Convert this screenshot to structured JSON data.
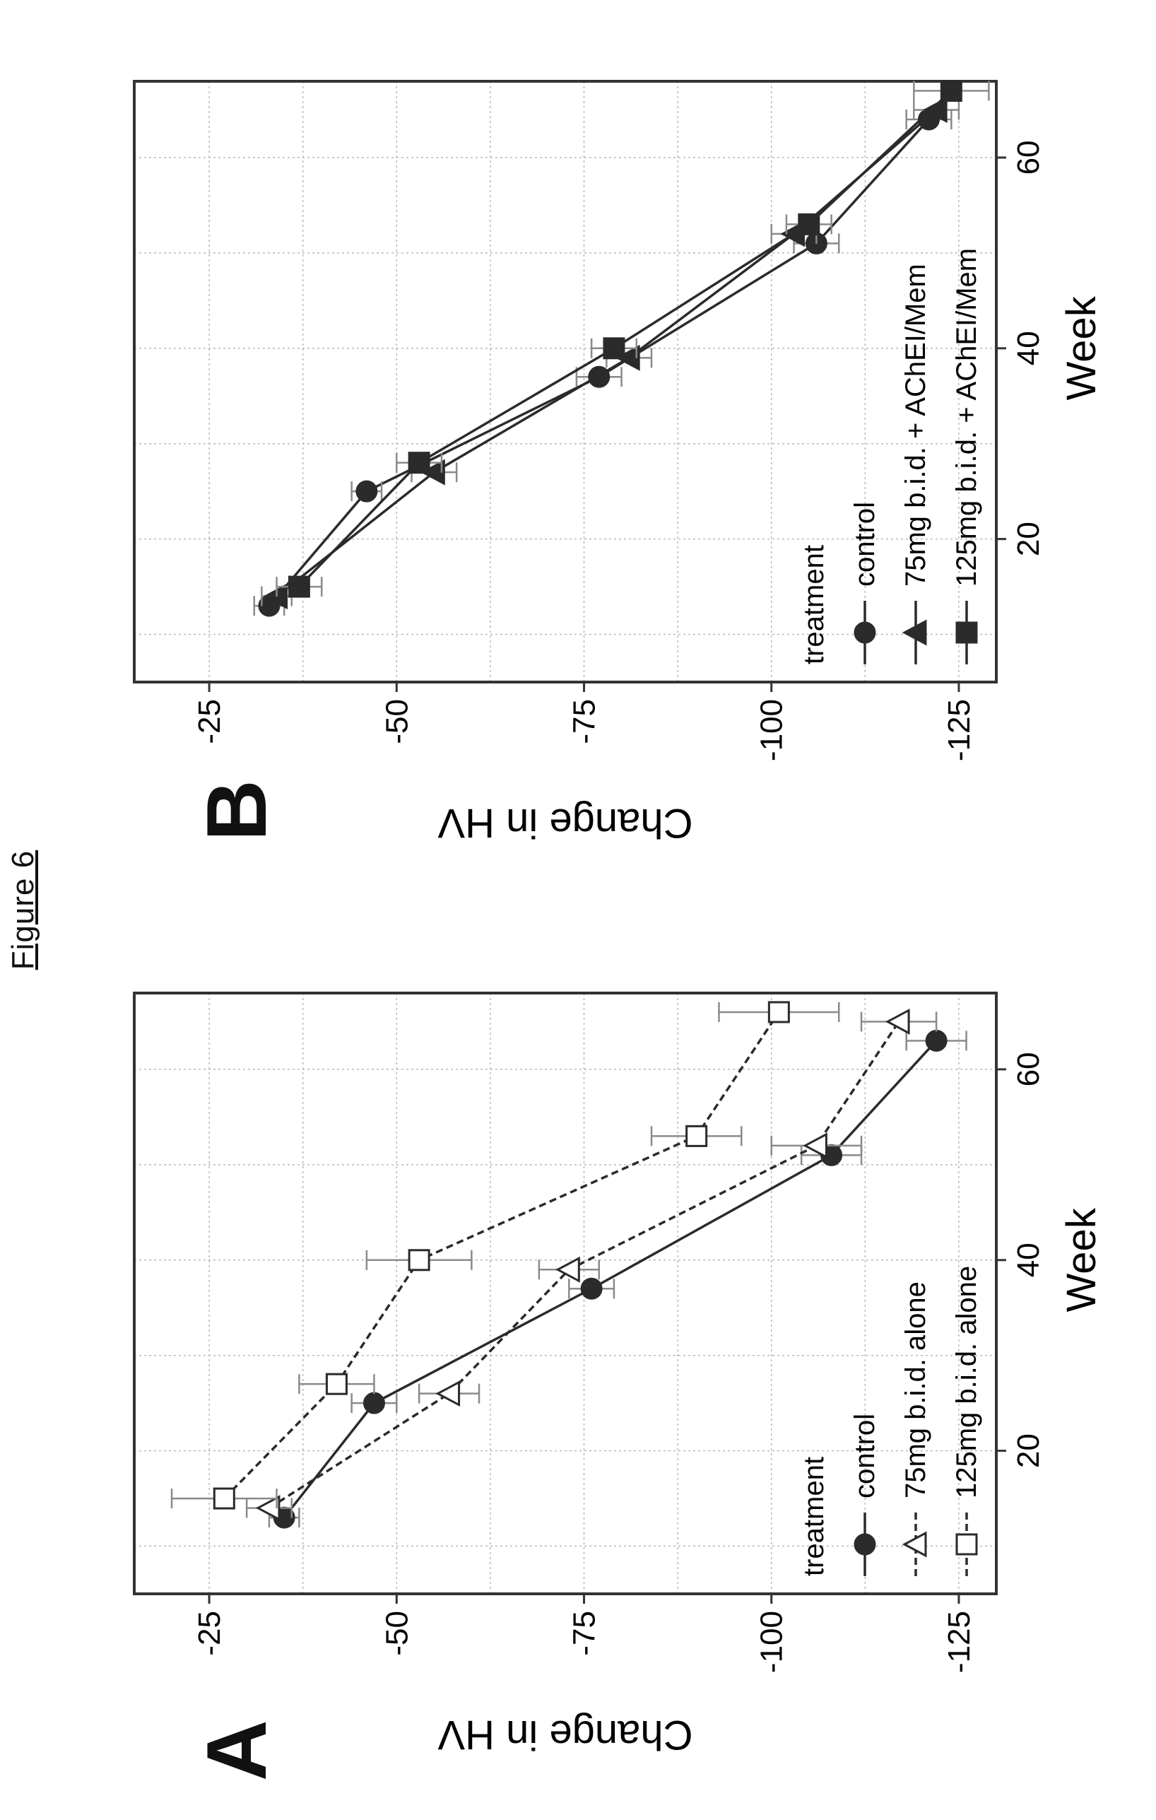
{
  "figure_title": "Figure 6",
  "panel_labels": {
    "a": "A",
    "b": "B"
  },
  "colors": {
    "line": "#2b2b2b",
    "grid": "#b8b8b8",
    "error_bar": "#8a8a8a",
    "frame": "#333333"
  },
  "chart_data": [
    {
      "panel": "A",
      "type": "line",
      "xlabel": "Week",
      "ylabel": "Change in HV",
      "xlim": [
        5,
        68
      ],
      "ylim": [
        -130,
        -15
      ],
      "xticks": [
        20,
        40,
        60
      ],
      "yticks": [
        -25,
        -50,
        -75,
        -100,
        -125
      ],
      "grid": true,
      "legend": {
        "title": "treatment",
        "placement": "bottom-left"
      },
      "series": [
        {
          "name": "control",
          "marker": "circle-filled",
          "dash": "solid",
          "x": [
            13,
            25,
            37,
            51,
            63
          ],
          "y": [
            -35,
            -47,
            -76,
            -108,
            -122
          ],
          "err": [
            2,
            3,
            3,
            4,
            4
          ]
        },
        {
          "name": "75mg b.i.d. alone",
          "marker": "triangle-open",
          "dash": "dashed",
          "x": [
            14,
            26,
            39,
            52,
            65
          ],
          "y": [
            -33,
            -57,
            -73,
            -106,
            -117
          ],
          "err": [
            3,
            4,
            4,
            6,
            5
          ]
        },
        {
          "name": "125mg b.i.d. alone",
          "marker": "square-open",
          "dash": "dashed",
          "x": [
            15,
            27,
            40,
            53,
            66
          ],
          "y": [
            -27,
            -42,
            -53,
            -90,
            -101
          ],
          "err": [
            7,
            5,
            7,
            6,
            8
          ]
        }
      ]
    },
    {
      "panel": "B",
      "type": "line",
      "xlabel": "Week",
      "ylabel": "Change in HV",
      "xlim": [
        5,
        68
      ],
      "ylim": [
        -130,
        -15
      ],
      "xticks": [
        20,
        40,
        60
      ],
      "yticks": [
        -25,
        -50,
        -75,
        -100,
        -125
      ],
      "grid": true,
      "legend": {
        "title": "treatment",
        "placement": "bottom-left"
      },
      "series": [
        {
          "name": "control",
          "marker": "circle-filled",
          "dash": "solid",
          "x": [
            13,
            25,
            37,
            51,
            64
          ],
          "y": [
            -33,
            -46,
            -77,
            -106,
            -121
          ],
          "err": [
            2,
            2,
            3,
            3,
            3
          ]
        },
        {
          "name": "75mg b.i.d. + AChEI/Mem",
          "marker": "triangle-filled",
          "dash": "solid",
          "x": [
            14,
            27,
            39,
            52,
            65
          ],
          "y": [
            -34,
            -55,
            -81,
            -103,
            -122
          ],
          "err": [
            2,
            3,
            3,
            3,
            3
          ]
        },
        {
          "name": "125mg b.i.d. + AChEI/Mem",
          "marker": "square-filled",
          "dash": "solid",
          "x": [
            15,
            28,
            40,
            53,
            67
          ],
          "y": [
            -37,
            -53,
            -79,
            -105,
            -124
          ],
          "err": [
            3,
            3,
            3,
            3,
            5
          ]
        }
      ]
    }
  ]
}
